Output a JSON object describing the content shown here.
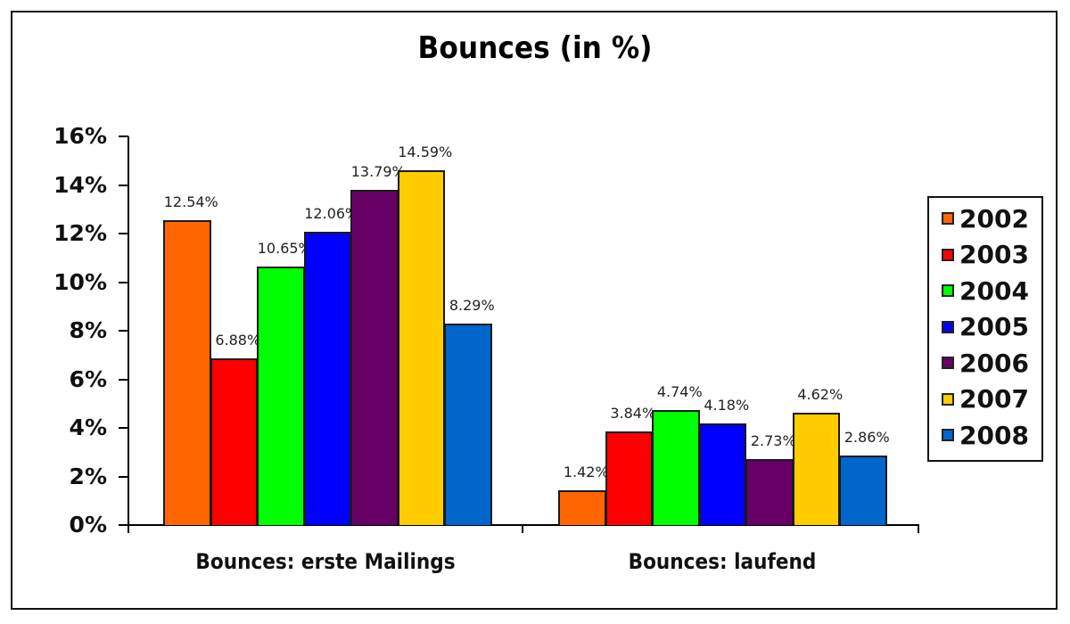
{
  "chart_data": {
    "type": "bar",
    "title": "Bounces (in %)",
    "xlabel": "",
    "ylabel": "",
    "ylim": [
      0,
      16
    ],
    "yticks": [
      "0%",
      "2%",
      "4%",
      "6%",
      "8%",
      "10%",
      "12%",
      "14%",
      "16%"
    ],
    "categories": [
      "Bounces: erste Mailings",
      "Bounces: laufend"
    ],
    "series": [
      {
        "name": "2002",
        "color": "#FF6600",
        "values": [
          12.54,
          1.42
        ],
        "labels": [
          "12.54%",
          "1.42%"
        ]
      },
      {
        "name": "2003",
        "color": "#FF0000",
        "values": [
          6.88,
          3.84
        ],
        "labels": [
          "6.88%",
          "3.84%"
        ]
      },
      {
        "name": "2004",
        "color": "#00FF00",
        "values": [
          10.65,
          4.74
        ],
        "labels": [
          "10.65%",
          "4.74%"
        ]
      },
      {
        "name": "2005",
        "color": "#0000FF",
        "values": [
          12.06,
          4.18
        ],
        "labels": [
          "12.06%",
          "4.18%"
        ]
      },
      {
        "name": "2006",
        "color": "#660066",
        "values": [
          13.79,
          2.73
        ],
        "labels": [
          "13.79%",
          "2.73%"
        ]
      },
      {
        "name": "2007",
        "color": "#FFCC00",
        "values": [
          14.59,
          4.62
        ],
        "labels": [
          "14.59%",
          "4.62%"
        ]
      },
      {
        "name": "2008",
        "color": "#0066CC",
        "values": [
          8.29,
          2.86
        ],
        "labels": [
          "8.29%",
          "2.86%"
        ]
      }
    ],
    "legend_position": "right",
    "grid": false,
    "data_labels": true
  }
}
